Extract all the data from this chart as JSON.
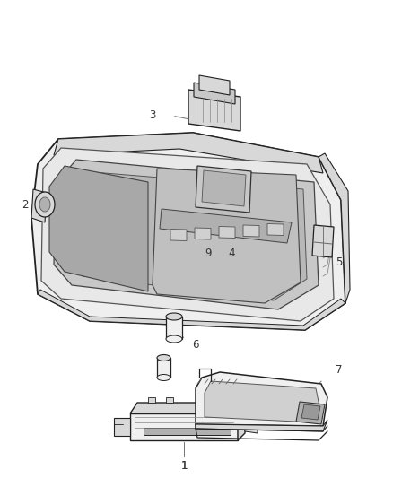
{
  "background_color": "#ffffff",
  "figure_width": 4.38,
  "figure_height": 5.33,
  "dpi": 100,
  "text_color": "#333333",
  "line_color": "#777777",
  "label_fontsize": 8.5,
  "edge_color": "#222222",
  "fill_light": "#f0f0f0",
  "fill_mid": "#d8d8d8",
  "fill_dark": "#b0b0b0"
}
